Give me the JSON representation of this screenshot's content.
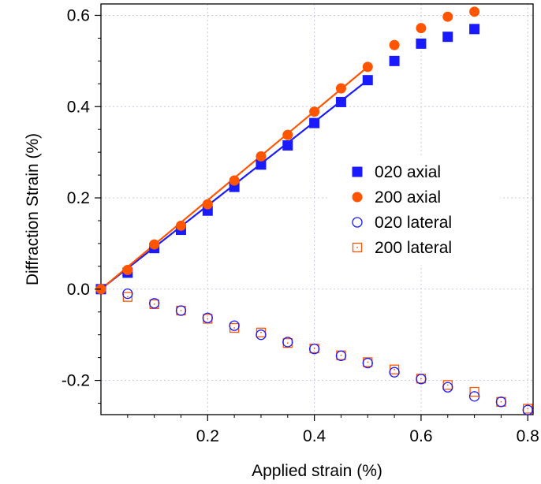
{
  "chart_data": {
    "type": "scatter",
    "xlabel": "Applied strain (%)",
    "ylabel": "Diffraction Strain (%)",
    "xlim": [
      0,
      0.81
    ],
    "ylim": [
      -0.275,
      0.625
    ],
    "xticks": [
      0.2,
      0.4,
      0.6,
      0.8
    ],
    "xtick_labels": [
      "0.2",
      "0.4",
      "0.6",
      "0.8"
    ],
    "yticks": [
      -0.2,
      0.0,
      0.2,
      0.4,
      0.6
    ],
    "ytick_labels": [
      "-0.2",
      "0.0",
      "0.2",
      "0.4",
      "0.6"
    ],
    "grid": true,
    "legend_position": "center-right",
    "series": [
      {
        "name": "020 axial",
        "marker": "filled-square",
        "color": "#1a1aff",
        "x": [
          0,
          0.05,
          0.1,
          0.15,
          0.2,
          0.25,
          0.3,
          0.35,
          0.4,
          0.45,
          0.5,
          0.55,
          0.6,
          0.65,
          0.7
        ],
        "y": [
          0,
          0.036,
          0.09,
          0.13,
          0.172,
          0.224,
          0.273,
          0.315,
          0.364,
          0.41,
          0.458,
          0.5,
          0.538,
          0.553,
          0.57
        ]
      },
      {
        "name": "200 axial",
        "marker": "filled-circle",
        "color": "#ff5500",
        "x": [
          0,
          0.05,
          0.1,
          0.15,
          0.2,
          0.25,
          0.3,
          0.35,
          0.4,
          0.45,
          0.5,
          0.55,
          0.6,
          0.65,
          0.7
        ],
        "y": [
          0,
          0.042,
          0.098,
          0.139,
          0.186,
          0.238,
          0.291,
          0.338,
          0.389,
          0.44,
          0.487,
          0.535,
          0.572,
          0.597,
          0.608
        ]
      },
      {
        "name": "020 lateral",
        "marker": "open-circle",
        "color": "#1a1aff",
        "x": [
          0,
          0.05,
          0.1,
          0.15,
          0.2,
          0.25,
          0.3,
          0.35,
          0.4,
          0.45,
          0.5,
          0.55,
          0.6,
          0.65,
          0.7,
          0.75,
          0.8
        ],
        "y": [
          0,
          -0.01,
          -0.031,
          -0.047,
          -0.063,
          -0.08,
          -0.1,
          -0.116,
          -0.131,
          -0.146,
          -0.162,
          -0.182,
          -0.197,
          -0.215,
          -0.235,
          -0.247,
          -0.265
        ]
      },
      {
        "name": "200 lateral",
        "marker": "open-square",
        "color": "#ff5500",
        "x": [
          0,
          0.05,
          0.1,
          0.15,
          0.2,
          0.25,
          0.3,
          0.35,
          0.4,
          0.45,
          0.5,
          0.55,
          0.6,
          0.65,
          0.7,
          0.75,
          0.8
        ],
        "y": [
          0,
          -0.017,
          -0.033,
          -0.047,
          -0.065,
          -0.085,
          -0.095,
          -0.118,
          -0.13,
          -0.145,
          -0.16,
          -0.176,
          -0.196,
          -0.21,
          -0.225,
          -0.247,
          -0.262
        ]
      }
    ],
    "fit_lines": [
      {
        "color": "#1a1aff",
        "x": [
          0,
          0.5
        ],
        "y": [
          0,
          0.458
        ]
      },
      {
        "color": "#ff5500",
        "x": [
          0,
          0.5
        ],
        "y": [
          0,
          0.487
        ]
      }
    ]
  }
}
